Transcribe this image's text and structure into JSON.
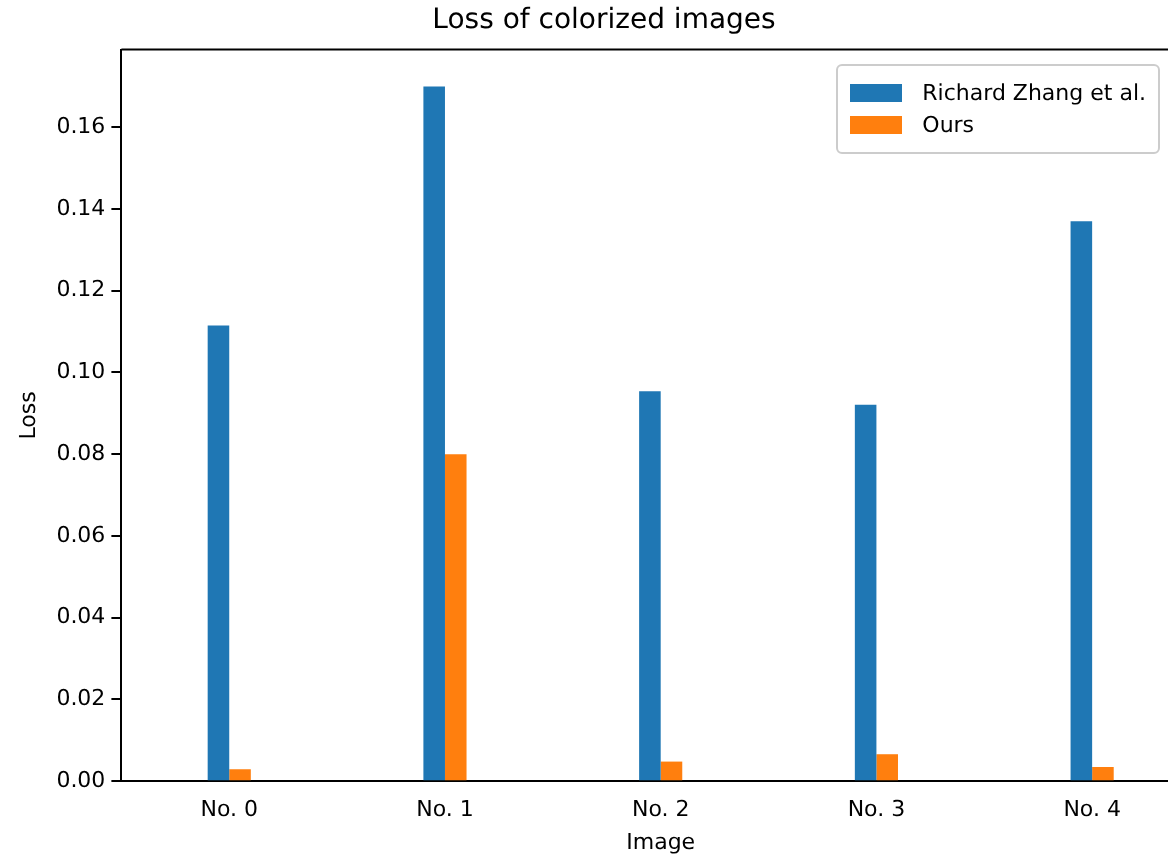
{
  "chart_data": {
    "type": "bar",
    "title": "Loss of colorized images",
    "xlabel": "Image",
    "ylabel": "Loss",
    "categories": [
      "No. 0",
      "No. 1",
      "No. 2",
      "No. 3",
      "No. 4"
    ],
    "series": [
      {
        "name": "Richard Zhang et al.",
        "color": "#1f77b4",
        "values": [
          0.1115,
          0.17,
          0.0954,
          0.0921,
          0.137
        ]
      },
      {
        "name": "Ours",
        "color": "#ff7f0e",
        "values": [
          0.0029,
          0.08,
          0.0048,
          0.0066,
          0.0035
        ]
      }
    ],
    "ylim": [
      0,
      0.179
    ],
    "yticks": [
      {
        "value": 0,
        "label": "0.00"
      },
      0.02,
      0.04,
      0.06,
      0.08,
      {
        "value": 0.1,
        "label": "0.10"
      },
      0.12,
      0.14,
      0.16
    ],
    "grid": false,
    "legend": "top right"
  }
}
